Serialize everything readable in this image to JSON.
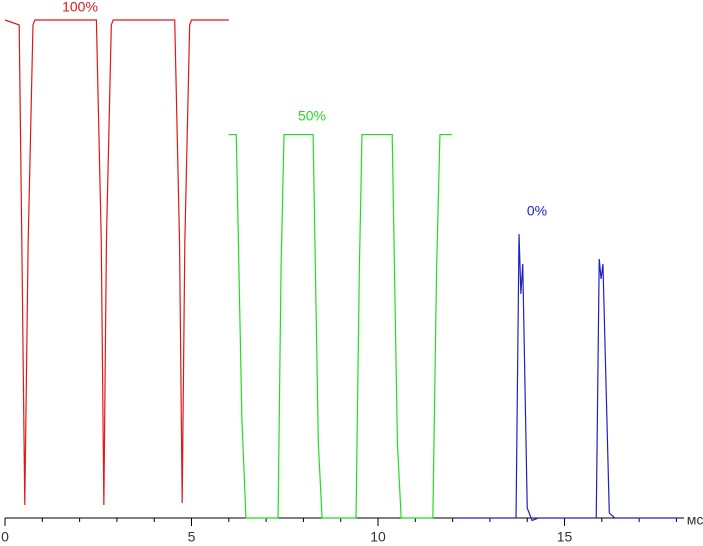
{
  "chart_data": {
    "type": "line",
    "x_label": "мс",
    "xlim": [
      0,
      18.2
    ],
    "xticks": [
      0,
      5,
      10,
      15
    ],
    "xminorticks": [
      1,
      2,
      3,
      4,
      6,
      7,
      8,
      9,
      11,
      12,
      13,
      14,
      16,
      17,
      18
    ],
    "ylim": [
      0,
      100
    ],
    "series": [
      {
        "name": "100%",
        "color": "#e01818",
        "x": [
          0,
          0.38,
          0.45,
          0.53,
          0.62,
          0.75,
          0.8,
          2.45,
          2.58,
          2.65,
          2.72,
          2.85,
          2.9,
          4.55,
          4.68,
          4.75,
          4.82,
          4.95,
          5.0,
          6.0
        ],
        "values": [
          100,
          99,
          56,
          2.6,
          55,
          99,
          100,
          100,
          56,
          2.6,
          56,
          99,
          100,
          100,
          55,
          3,
          55,
          99,
          100,
          100
        ]
      },
      {
        "name": "50%",
        "color": "#22dd22",
        "x": [
          6.0,
          6.2,
          6.35,
          6.46,
          7.32,
          7.4,
          7.48,
          8.26,
          8.4,
          8.5,
          9.41,
          9.5,
          9.57,
          10.38,
          10.52,
          10.62,
          11.47,
          11.57,
          11.66,
          11.98
        ],
        "values": [
          77,
          77,
          20,
          0,
          0,
          50,
          77,
          77,
          15,
          0,
          0,
          50,
          77,
          77,
          15,
          0,
          0,
          50,
          77,
          77
        ]
      },
      {
        "name": "0%",
        "color": "#2020c0",
        "x": [
          11.98,
          13.7,
          13.78,
          13.83,
          13.88,
          14.0,
          14.13,
          14.3,
          15.85,
          15.93,
          15.98,
          16.03,
          16.2,
          16.35,
          18.2
        ],
        "values": [
          0,
          0,
          57,
          45,
          51,
          2,
          -0.5,
          0,
          0,
          52,
          48,
          51,
          1,
          0,
          0
        ]
      }
    ]
  }
}
